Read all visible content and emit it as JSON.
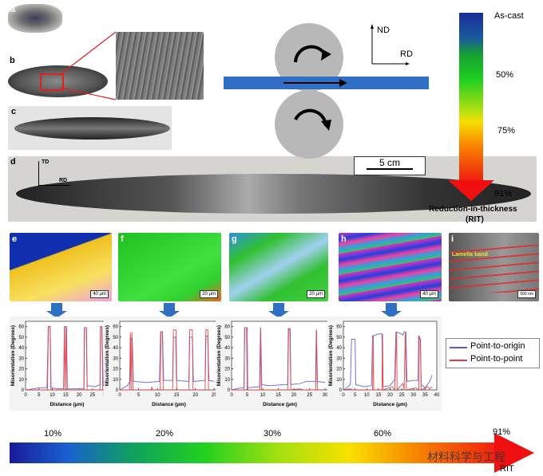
{
  "panels": {
    "a": "a",
    "b": "b",
    "c": "c",
    "d": "d",
    "e": "e",
    "f": "f",
    "g": "g",
    "h": "h",
    "i": "i"
  },
  "axes_labels": {
    "td": "TD",
    "rd": "RD",
    "nd": "ND",
    "rd2": "RD"
  },
  "scale_bars": {
    "d": "5 cm",
    "e": "40 µm",
    "f": "20 µm",
    "g": "20 µm",
    "h": "40 µm",
    "i": "500 nm"
  },
  "annotation_i": "Lamella band",
  "rit_scale": {
    "labels": [
      "As-cast",
      "50%",
      "75%",
      "91%"
    ],
    "title": "Reduction-in-thickness",
    "subtitle": "(RIT)"
  },
  "bottom_scale": {
    "labels": [
      "10%",
      "20%",
      "30%",
      "60%",
      "91%"
    ],
    "end_label": "RIT"
  },
  "watermark": "材料科学与工程",
  "colors": {
    "roll_strip": "#2f6fc4",
    "point_to_origin": "#5a5ad8",
    "point_to_point": "#e83a3a",
    "rolls": "#b8b8b8"
  },
  "chart_data": {
    "type": "line",
    "legend": {
      "entries": [
        "Point-to-origin",
        "Point-to-point"
      ],
      "placement": "right"
    },
    "ylabel": "Misorientation (Degrees)",
    "xlabel": "Distance (µm)",
    "charts": [
      {
        "panel": "e",
        "xlim": [
          0,
          31
        ],
        "ylim": [
          0,
          65
        ],
        "xticks": [
          0,
          5,
          10,
          15,
          20,
          25,
          30
        ],
        "yticks": [
          0,
          10,
          20,
          30,
          40,
          50,
          60
        ],
        "series": [
          {
            "name": "Point-to-origin",
            "points": [
              [
                0,
                0
              ],
              [
                3,
                1
              ],
              [
                5,
                2
              ],
              [
                8,
                2
              ],
              [
                8.5,
                60
              ],
              [
                9.2,
                60
              ],
              [
                9.5,
                2
              ],
              [
                12,
                1
              ],
              [
                14.3,
                1
              ],
              [
                14.5,
                60
              ],
              [
                15.3,
                60
              ],
              [
                15.6,
                1
              ],
              [
                21.8,
                1
              ],
              [
                22,
                59
              ],
              [
                22.7,
                59
              ],
              [
                23,
                4
              ],
              [
                26,
                3
              ],
              [
                27.8,
                5
              ],
              [
                28,
                60
              ],
              [
                28.5,
                60
              ],
              [
                29,
                4
              ],
              [
                31,
                3
              ]
            ]
          },
          {
            "name": "Point-to-point",
            "points": [
              [
                0,
                0
              ],
              [
                8.2,
                0
              ],
              [
                8.5,
                60
              ],
              [
                9.2,
                60
              ],
              [
                9.5,
                0
              ],
              [
                14.2,
                0
              ],
              [
                14.5,
                60
              ],
              [
                14.9,
                0
              ],
              [
                15.1,
                60
              ],
              [
                15.5,
                0
              ],
              [
                21.8,
                0
              ],
              [
                22,
                59
              ],
              [
                22.7,
                59
              ],
              [
                23,
                0
              ],
              [
                27.8,
                0
              ],
              [
                28,
                60
              ],
              [
                28.5,
                60
              ],
              [
                28.8,
                0
              ],
              [
                31,
                0
              ]
            ]
          }
        ]
      },
      {
        "panel": "f",
        "xlim": [
          0,
          26
        ],
        "ylim": [
          0,
          65
        ],
        "xticks": [
          0,
          5,
          10,
          15,
          20,
          25
        ],
        "yticks": [
          0,
          10,
          20,
          30,
          40,
          50,
          60
        ],
        "series": [
          {
            "name": "Point-to-origin",
            "points": [
              [
                0,
                0
              ],
              [
                2,
                4
              ],
              [
                2.7,
                8
              ],
              [
                2.9,
                49
              ],
              [
                3.3,
                49
              ],
              [
                3.6,
                8
              ],
              [
                7,
                7
              ],
              [
                10.5,
                8
              ],
              [
                10.8,
                55
              ],
              [
                11.3,
                55
              ],
              [
                11.6,
                9
              ],
              [
                14,
                9
              ],
              [
                14.2,
                50
              ],
              [
                14.8,
                50
              ],
              [
                15,
                9
              ],
              [
                18.3,
                8
              ],
              [
                18.5,
                50
              ],
              [
                19.2,
                50
              ],
              [
                19.5,
                8
              ],
              [
                22.6,
                9
              ],
              [
                22.8,
                51
              ],
              [
                23.3,
                51
              ],
              [
                23.6,
                9
              ],
              [
                25,
                8
              ]
            ]
          },
          {
            "name": "Point-to-point",
            "points": [
              [
                0,
                0
              ],
              [
                2.6,
                0
              ],
              [
                2.8,
                54
              ],
              [
                3.0,
                0
              ],
              [
                3.2,
                55
              ],
              [
                3.5,
                0
              ],
              [
                8.3,
                0
              ],
              [
                8.5,
                3
              ],
              [
                8.7,
                0
              ],
              [
                10.7,
                0
              ],
              [
                10.9,
                55
              ],
              [
                11.3,
                55
              ],
              [
                11.5,
                0
              ],
              [
                14,
                0
              ],
              [
                14.2,
                57
              ],
              [
                14.9,
                57
              ],
              [
                15.1,
                0
              ],
              [
                18.3,
                0
              ],
              [
                18.5,
                57
              ],
              [
                19.2,
                57
              ],
              [
                19.4,
                0
              ],
              [
                22.6,
                0
              ],
              [
                22.8,
                57
              ],
              [
                23.3,
                57
              ],
              [
                23.5,
                0
              ],
              [
                25,
                0
              ]
            ]
          }
        ]
      },
      {
        "panel": "g",
        "xlim": [
          0,
          31
        ],
        "ylim": [
          0,
          65
        ],
        "xticks": [
          0,
          5,
          10,
          15,
          20,
          25,
          30
        ],
        "yticks": [
          0,
          10,
          20,
          30,
          40,
          50,
          60
        ],
        "series": [
          {
            "name": "Point-to-origin",
            "points": [
              [
                0,
                0
              ],
              [
                3,
                2
              ],
              [
                4,
                2
              ],
              [
                4.2,
                59
              ],
              [
                4.8,
                59
              ],
              [
                5,
                2
              ],
              [
                9,
                3
              ],
              [
                9.3,
                59
              ],
              [
                9.7,
                5
              ],
              [
                12,
                4
              ],
              [
                17,
                5
              ],
              [
                18,
                5
              ],
              [
                18.2,
                58
              ],
              [
                18.7,
                58
              ],
              [
                19,
                5
              ],
              [
                22,
                6
              ],
              [
                24,
                8
              ],
              [
                27,
                8
              ],
              [
                27.2,
                57
              ],
              [
                27.5,
                8
              ],
              [
                30,
                7
              ]
            ]
          },
          {
            "name": "Point-to-point",
            "points": [
              [
                0,
                0
              ],
              [
                4,
                0
              ],
              [
                4.2,
                59
              ],
              [
                5,
                59
              ],
              [
                5.2,
                0
              ],
              [
                9.1,
                0
              ],
              [
                9.3,
                59
              ],
              [
                9.6,
                0
              ],
              [
                18,
                0
              ],
              [
                18.3,
                58
              ],
              [
                18.8,
                58
              ],
              [
                19,
                0
              ],
              [
                22,
                1
              ],
              [
                23,
                0
              ],
              [
                27,
                0
              ],
              [
                27.2,
                57
              ],
              [
                27.6,
                0
              ],
              [
                30,
                0
              ]
            ]
          }
        ]
      },
      {
        "panel": "h",
        "xlim": [
          0,
          40
        ],
        "ylim": [
          0,
          65
        ],
        "xticks": [
          0,
          5,
          10,
          15,
          20,
          25,
          30,
          35,
          40
        ],
        "yticks": [
          0,
          10,
          20,
          30,
          40,
          50,
          60
        ],
        "series": [
          {
            "name": "Point-to-origin",
            "points": [
              [
                0,
                0
              ],
              [
                2,
                3
              ],
              [
                3,
                5
              ],
              [
                3.5,
                48
              ],
              [
                5,
                48
              ],
              [
                5.3,
                5
              ],
              [
                9,
                3
              ],
              [
                12,
                4
              ],
              [
                12.5,
                51
              ],
              [
                15,
                53
              ],
              [
                16.5,
                53
              ],
              [
                17,
                3
              ],
              [
                20,
                4
              ],
              [
                22,
                10
              ],
              [
                22.5,
                55
              ],
              [
                24,
                54
              ],
              [
                25.5,
                52
              ],
              [
                26,
                55
              ],
              [
                26.8,
                55
              ],
              [
                27.2,
                8
              ],
              [
                30,
                9
              ],
              [
                32,
                9
              ],
              [
                32.2,
                51
              ],
              [
                33,
                48
              ],
              [
                33.3,
                5
              ],
              [
                35,
                2
              ],
              [
                37,
                8
              ],
              [
                38,
                14
              ]
            ]
          },
          {
            "name": "Point-to-point",
            "points": [
              [
                0,
                0
              ],
              [
                3,
                1
              ],
              [
                4,
                0
              ],
              [
                12.5,
                0
              ],
              [
                12.8,
                52
              ],
              [
                13,
                0
              ],
              [
                16.5,
                0
              ],
              [
                16.8,
                53
              ],
              [
                17,
                0
              ],
              [
                21,
                3
              ],
              [
                22,
                0
              ],
              [
                22.8,
                55
              ],
              [
                23,
                0
              ],
              [
                25.5,
                6
              ],
              [
                26,
                0
              ],
              [
                26.5,
                54
              ],
              [
                27,
                0
              ],
              [
                31,
                2
              ],
              [
                32.3,
                0
              ],
              [
                32.5,
                51
              ],
              [
                33,
                47
              ],
              [
                33.3,
                0
              ],
              [
                36,
                3
              ],
              [
                37,
                1
              ],
              [
                38,
                3
              ]
            ]
          }
        ]
      }
    ]
  }
}
